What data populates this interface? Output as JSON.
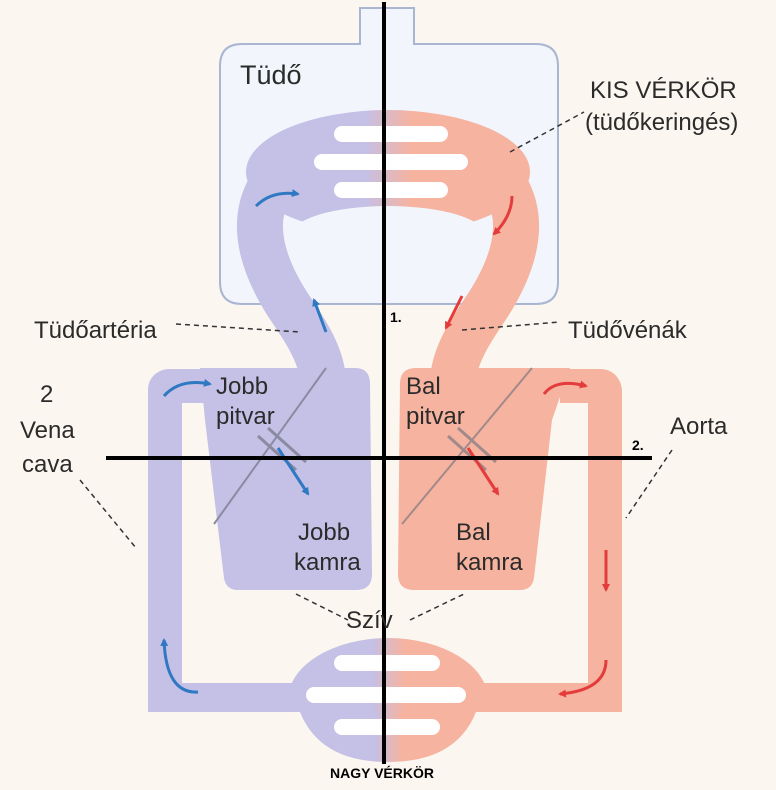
{
  "labels": {
    "lung": "Tüdő",
    "small_circuit_title": "KIS VÉRKÖR",
    "small_circuit_sub": "(tüdőkeringés)",
    "pulmonary_artery": "Tüdőartéria",
    "pulmonary_veins": "Tüdővénák",
    "vena_cava_count": "2",
    "vena_cava_1": "Vena",
    "vena_cava_2": "cava",
    "right_atrium_1": "Jobb",
    "right_atrium_2": "pitvar",
    "left_atrium_1": "Bal",
    "left_atrium_2": "pitvar",
    "right_ventricle_1": "Jobb",
    "right_ventricle_2": "kamra",
    "left_ventricle_1": "Bal",
    "left_ventricle_2": "kamra",
    "aorta": "Aorta",
    "heart": "Szív",
    "axis_1": "1.",
    "axis_2": "2.",
    "large_circuit": "NAGY VÉRKÖR"
  },
  "colors": {
    "background": "#fbf6ef",
    "deoxygenated": "#c4c0e6",
    "oxygenated": "#f6b3a0",
    "lung_box_fill": "#f2f5fc",
    "lung_box_stroke": "#a9b6d2",
    "blue_arrow": "#2f78c2",
    "red_arrow": "#e43c3c",
    "axis_line": "#000000"
  }
}
